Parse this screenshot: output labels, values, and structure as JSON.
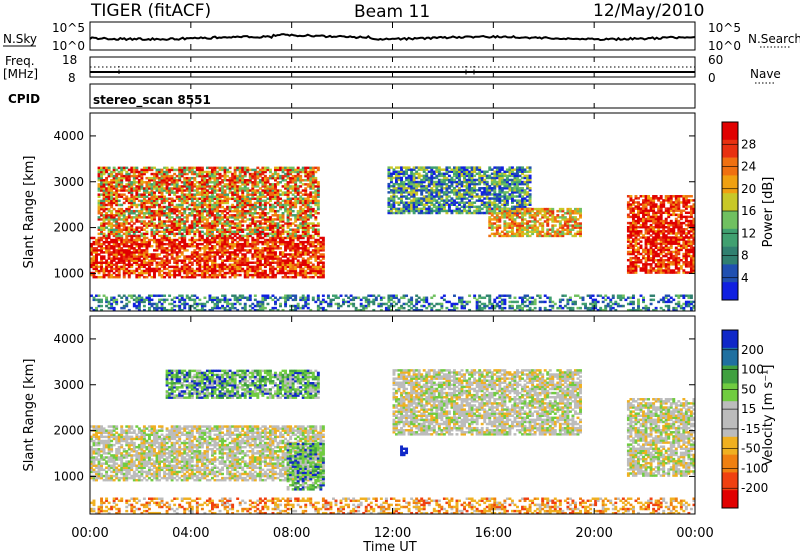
{
  "header": {
    "station": "TIGER (fitACF)",
    "beam": "Beam 11",
    "date": "12/May/2010"
  },
  "summary_panels": {
    "nsky_label": "N.Sky",
    "nsky_ticks": [
      "10^5",
      "10^0"
    ],
    "nsearch_label": "N.Search",
    "freq_label_1": "Freq.",
    "freq_label_2": "[MHz]",
    "freq_ticks": [
      "18",
      "8"
    ],
    "nave_ticks": [
      "60",
      "0"
    ],
    "nave_label": "Nave",
    "cpid_label": "CPID",
    "cpid_value": "stereo_scan 8551"
  },
  "colors": {
    "power_scale": [
      "#1020e0",
      "#2050b0",
      "#308070",
      "#40a070",
      "#70c060",
      "#c8c828",
      "#f0a010",
      "#f07010",
      "#e83010",
      "#e00000"
    ],
    "velocity_scale": [
      "#1028c8",
      "#2070a0",
      "#40a040",
      "#70cc40",
      "#bcbcbc",
      "#bcbcbc",
      "#f0b020",
      "#f08010",
      "#f04010",
      "#e00000"
    ]
  },
  "chart_data": [
    {
      "type": "heatmap",
      "title": "",
      "quantity": "Power",
      "ylabel": "Slant Range [km]",
      "ylim": [
        180,
        4500
      ],
      "yticks": [
        "1000",
        "2000",
        "3000",
        "4000"
      ],
      "colorbar_label": "Power [dB]",
      "colorbar_ticks": [
        "4",
        "8",
        "12",
        "16",
        "20",
        "24",
        "28"
      ],
      "regions": [
        {
          "t": [
            0.0,
            9.2
          ],
          "range": [
            900,
            1800
          ],
          "level": "high"
        },
        {
          "t": [
            0.3,
            9.0
          ],
          "range": [
            1800,
            3300
          ],
          "level": "mixed"
        },
        {
          "t": [
            11.8,
            17.5
          ],
          "range": [
            2300,
            3300
          ],
          "level": "low-medium"
        },
        {
          "t": [
            15.8,
            19.5
          ],
          "range": [
            1800,
            2400
          ],
          "level": "medium"
        },
        {
          "t": [
            21.3,
            24.0
          ],
          "range": [
            1000,
            2700
          ],
          "level": "high"
        },
        {
          "t": [
            0.0,
            24.0
          ],
          "range": [
            180,
            500
          ],
          "level": "low"
        }
      ]
    },
    {
      "type": "heatmap",
      "title": "",
      "quantity": "Velocity",
      "ylabel": "Slant Range [km]",
      "ylim": [
        180,
        4500
      ],
      "yticks": [
        "1000",
        "2000",
        "3000",
        "4000"
      ],
      "colorbar_label": "Velocity [m s⁻¹]",
      "colorbar_ticks": [
        "200",
        "100",
        "50",
        "15",
        "-15",
        "-50",
        "-100",
        "-200"
      ],
      "regions": [
        {
          "t": [
            0.0,
            9.2
          ],
          "range": [
            900,
            2100
          ],
          "level": "near-zero"
        },
        {
          "t": [
            7.8,
            9.2
          ],
          "range": [
            700,
            1700
          ],
          "level": "positive"
        },
        {
          "t": [
            3.0,
            9.0
          ],
          "range": [
            2700,
            3300
          ],
          "level": "positive"
        },
        {
          "t": [
            12.3,
            12.6
          ],
          "range": [
            1450,
            1650
          ],
          "level": "strong-positive"
        },
        {
          "t": [
            12.0,
            19.5
          ],
          "range": [
            1900,
            3300
          ],
          "level": "near-zero"
        },
        {
          "t": [
            21.3,
            24.0
          ],
          "range": [
            1000,
            2700
          ],
          "level": "near-zero"
        },
        {
          "t": [
            0.0,
            24.0
          ],
          "range": [
            180,
            500
          ],
          "level": "negative"
        }
      ]
    }
  ],
  "xaxis": {
    "ticks": [
      "00:00",
      "04:00",
      "08:00",
      "12:00",
      "16:00",
      "20:00",
      "00:00"
    ],
    "label": "Time UT",
    "range_hours": [
      0,
      24
    ]
  }
}
